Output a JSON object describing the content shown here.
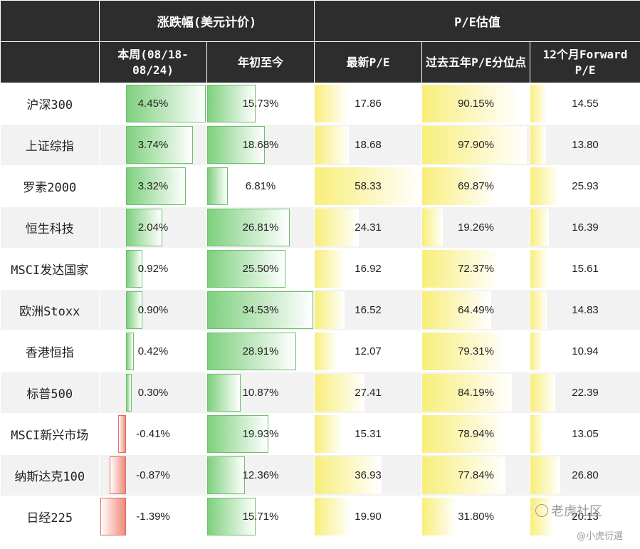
{
  "header": {
    "group1": "涨跌幅(美元计价)",
    "group2": "P/E估值",
    "sub": [
      {
        "line1": "本周",
        "line2": "(08/18-08/24)"
      },
      {
        "line1": "年初至今",
        "line2": ""
      },
      {
        "line1": "最新P/E",
        "line2": ""
      },
      {
        "line1": "过去五年",
        "line2": "P/E分位点"
      },
      {
        "line1": "12个月",
        "line2": "Forward P/E"
      }
    ]
  },
  "rows": [
    {
      "name": "沪深300",
      "week": "4.45%",
      "ytd": "15.73%",
      "pe": "17.86",
      "pct": "90.15%",
      "fpe": "14.55"
    },
    {
      "name": "上证综指",
      "week": "3.74%",
      "ytd": "18.68%",
      "pe": "18.68",
      "pct": "97.90%",
      "fpe": "13.80"
    },
    {
      "name": "罗素2000",
      "week": "3.32%",
      "ytd": "6.81%",
      "pe": "58.33",
      "pct": "69.87%",
      "fpe": "25.93"
    },
    {
      "name": "恒生科技",
      "week": "2.04%",
      "ytd": "26.81%",
      "pe": "24.31",
      "pct": "19.26%",
      "fpe": "16.39"
    },
    {
      "name": "MSCI发达国家",
      "week": "0.92%",
      "ytd": "25.50%",
      "pe": "16.92",
      "pct": "72.37%",
      "fpe": "15.61"
    },
    {
      "name": "欧洲Stoxx",
      "week": "0.90%",
      "ytd": "34.53%",
      "pe": "16.52",
      "pct": "64.49%",
      "fpe": "14.83"
    },
    {
      "name": "香港恒指",
      "week": "0.42%",
      "ytd": "28.91%",
      "pe": "12.07",
      "pct": "79.31%",
      "fpe": "10.94"
    },
    {
      "name": "标普500",
      "week": "0.30%",
      "ytd": "10.87%",
      "pe": "27.41",
      "pct": "84.19%",
      "fpe": "22.39"
    },
    {
      "name": "MSCI新兴市场",
      "week": "-0.41%",
      "ytd": "19.93%",
      "pe": "15.31",
      "pct": "78.94%",
      "fpe": "13.05"
    },
    {
      "name": "纳斯达克100",
      "week": "-0.87%",
      "ytd": "12.36%",
      "pe": "36.93",
      "pct": "77.84%",
      "fpe": "26.80"
    },
    {
      "name": "日经225",
      "week": "-1.39%",
      "ytd": "15.71%",
      "pe": "19.90",
      "pct": "31.80%",
      "fpe": "20.13"
    }
  ],
  "watermark": {
    "main": "老虎社区",
    "sub": "@小虎衍選"
  },
  "colors": {
    "header_bg": "#2d2d2d",
    "positive": "#7ed07e",
    "negative": "#f08a7a",
    "valuation": "#f8ee7a",
    "stripe": "#f2f2f2"
  }
}
